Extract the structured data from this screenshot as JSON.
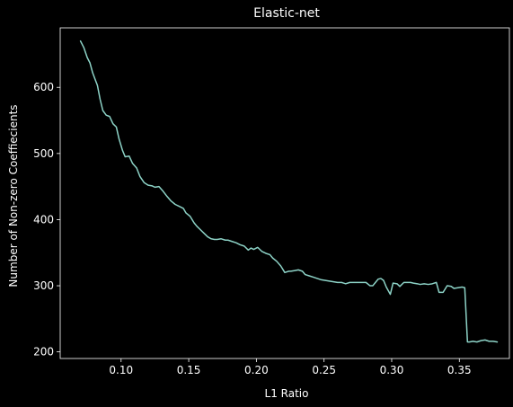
{
  "chart_data": {
    "type": "line",
    "title": "Elastic-net",
    "xlabel": "L1 Ratio",
    "ylabel": "Number of Non-zero Coeffiecients",
    "xlim": [
      0.055,
      0.387
    ],
    "ylim": [
      190,
      690
    ],
    "xticks": [
      0.1,
      0.15,
      0.2,
      0.25,
      0.3,
      0.35
    ],
    "xtick_labels": [
      "0.10",
      "0.15",
      "0.20",
      "0.25",
      "0.30",
      "0.35"
    ],
    "yticks": [
      200,
      300,
      400,
      500,
      600
    ],
    "ytick_labels": [
      "200",
      "300",
      "400",
      "500",
      "600"
    ],
    "grid": false,
    "background_color": "#000000",
    "axis_color": "#ffffff",
    "series": [
      {
        "color": "#8dd3c7",
        "x": [
          0.07,
          0.0725,
          0.075,
          0.077,
          0.079,
          0.081,
          0.0825,
          0.0845,
          0.0865,
          0.089,
          0.0915,
          0.094,
          0.0965,
          0.0985,
          0.101,
          0.103,
          0.106,
          0.1085,
          0.1115,
          0.114,
          0.117,
          0.12,
          0.123,
          0.125,
          0.128,
          0.131,
          0.134,
          0.137,
          0.14,
          0.143,
          0.146,
          0.148,
          0.151,
          0.154,
          0.156,
          0.158,
          0.161,
          0.164,
          0.1665,
          0.169,
          0.171,
          0.174,
          0.177,
          0.179,
          0.182,
          0.185,
          0.188,
          0.191,
          0.194,
          0.196,
          0.198,
          0.201,
          0.204,
          0.207,
          0.21,
          0.212,
          0.215,
          0.218,
          0.221,
          0.224,
          0.2255,
          0.2285,
          0.231,
          0.234,
          0.236,
          0.239,
          0.242,
          0.245,
          0.248,
          0.251,
          0.254,
          0.257,
          0.26,
          0.263,
          0.266,
          0.269,
          0.272,
          0.275,
          0.278,
          0.281,
          0.284,
          0.286,
          0.288,
          0.29,
          0.292,
          0.294,
          0.296,
          0.299,
          0.301,
          0.304,
          0.306,
          0.309,
          0.311,
          0.314,
          0.316,
          0.319,
          0.321,
          0.324,
          0.327,
          0.33,
          0.333,
          0.335,
          0.338,
          0.341,
          0.344,
          0.346,
          0.349,
          0.352,
          0.354,
          0.356,
          0.3575,
          0.36,
          0.363,
          0.366,
          0.369,
          0.372,
          0.375,
          0.378
        ],
        "y": [
          670,
          660,
          645,
          637,
          622,
          611,
          603,
          582,
          565,
          558,
          556,
          545,
          540,
          522,
          505,
          495,
          496,
          485,
          478,
          465,
          456,
          452,
          451,
          449,
          450,
          443,
          435,
          428,
          423,
          420,
          417,
          410,
          405,
          395,
          390,
          386,
          380,
          374,
          371,
          370,
          370,
          371,
          369,
          369,
          367,
          365,
          362,
          360,
          354,
          357,
          355,
          358,
          352,
          349,
          347,
          342,
          337,
          330,
          320,
          322,
          322,
          323,
          324,
          322,
          317,
          315,
          313,
          311,
          309,
          308,
          307,
          306,
          305,
          305,
          303,
          305,
          305,
          305,
          305,
          305,
          300,
          300,
          305,
          310,
          311,
          308,
          298,
          287,
          304,
          303,
          299,
          305,
          305,
          305,
          304,
          303,
          302,
          303,
          302,
          303,
          305,
          290,
          290,
          300,
          299,
          296,
          297,
          298,
          297,
          215,
          215,
          216,
          215,
          217,
          218,
          216,
          216,
          215
        ]
      }
    ]
  }
}
